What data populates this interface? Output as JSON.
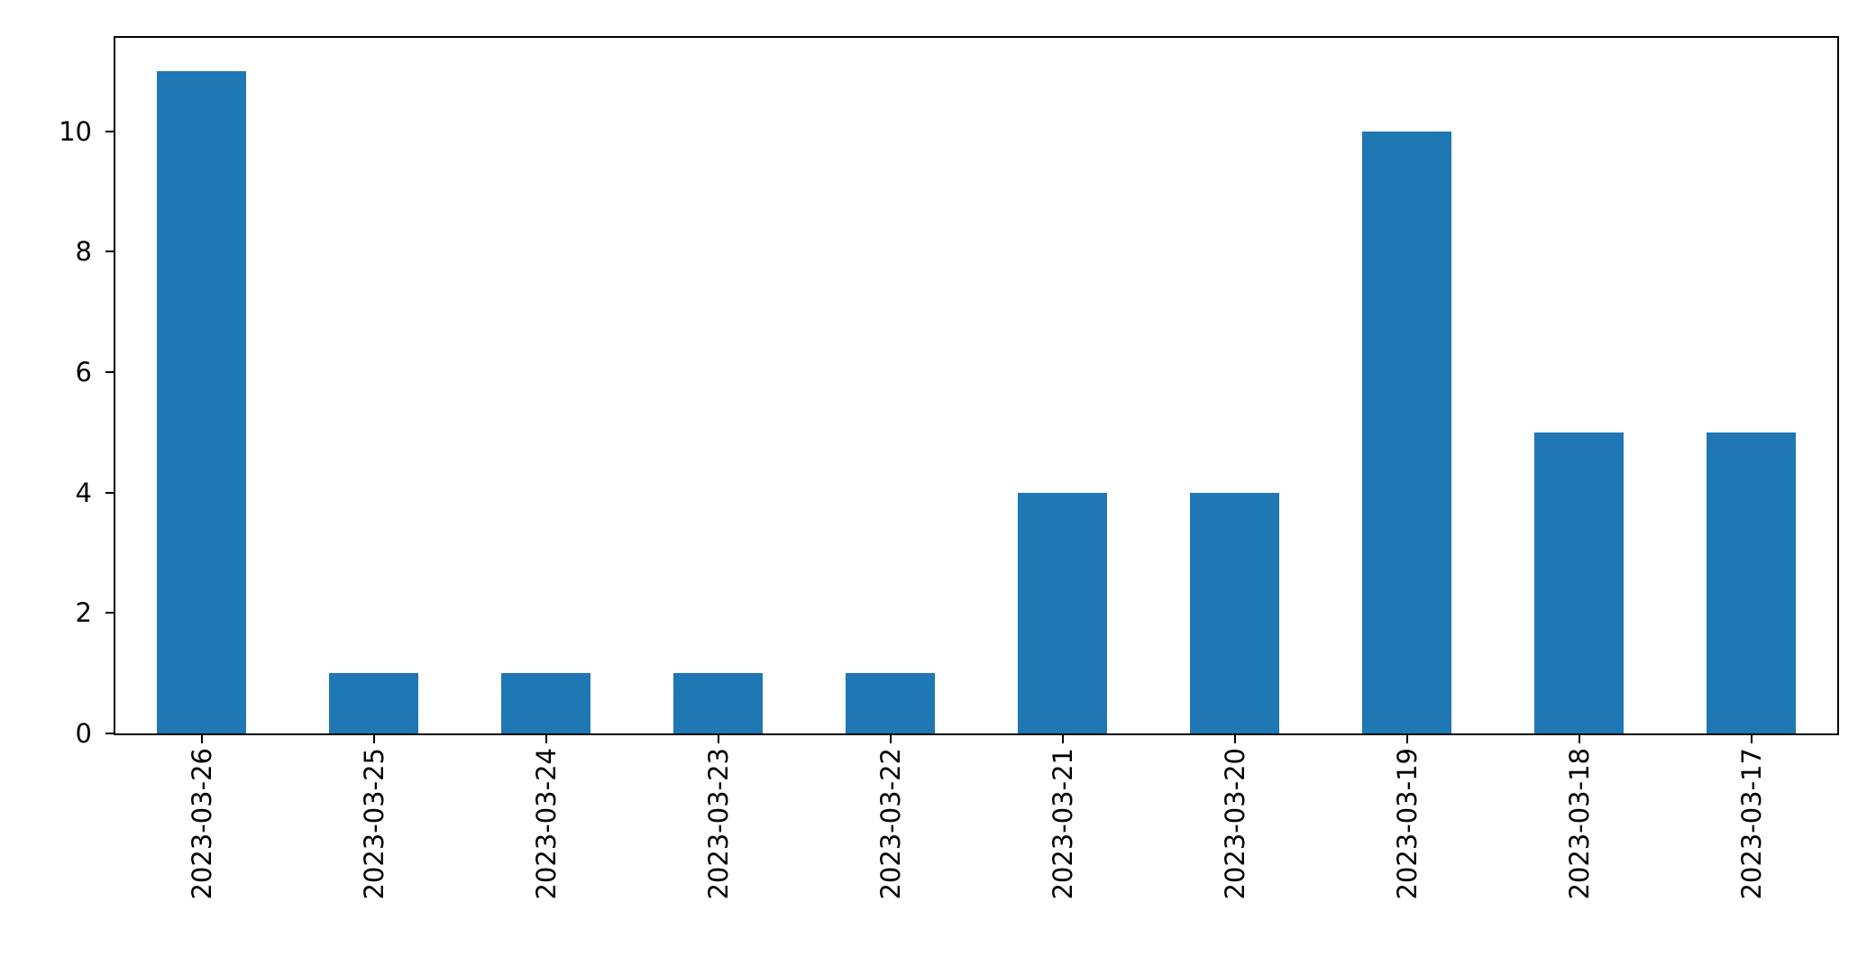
{
  "chart_data": {
    "type": "bar",
    "categories": [
      "2023-03-26",
      "2023-03-25",
      "2023-03-24",
      "2023-03-23",
      "2023-03-22",
      "2023-03-21",
      "2023-03-20",
      "2023-03-19",
      "2023-03-18",
      "2023-03-17"
    ],
    "values": [
      11,
      1,
      1,
      1,
      1,
      4,
      4,
      10,
      5,
      5
    ],
    "title": "",
    "xlabel": "",
    "ylabel": "",
    "ylim": [
      0,
      11.55
    ],
    "yticks": [
      0,
      2,
      4,
      6,
      8,
      10
    ],
    "bar_color": "#1f77b4",
    "axis_color": "#000000",
    "background_color": "#ffffff",
    "grid": false,
    "legend_position": "none",
    "x_tick_rotation": 90
  }
}
